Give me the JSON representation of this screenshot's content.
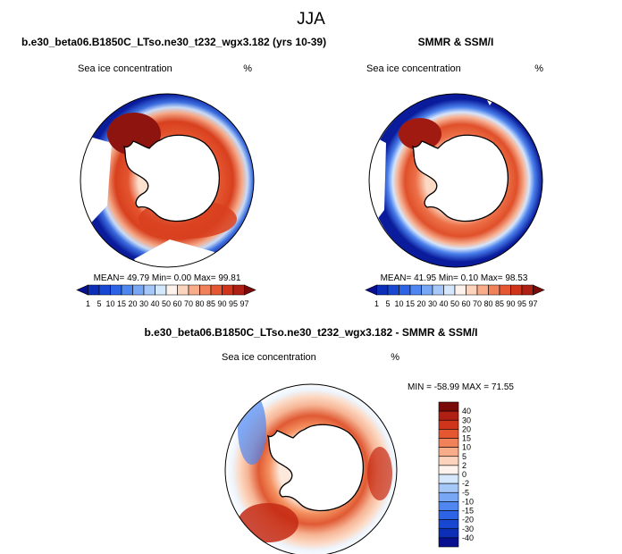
{
  "header": {
    "season": "JJA",
    "model_case": "b.e30_beta06.B1850C_LTso.ne30_t232_wgx3.182 (yrs 10-39)",
    "obs_name": "SMMR & SSM/I",
    "diff_title": "b.e30_beta06.B1850C_LTso.ne30_t232_wgx3.182 - SMMR & SSM/I"
  },
  "panels": {
    "model": {
      "label": "Sea ice concentration",
      "unit": "%",
      "stats": "MEAN=  49.79  Min=   0.00  Max=  99.81"
    },
    "obs": {
      "label": "Sea ice concentration",
      "unit": "%",
      "stats": "MEAN=  41.95  Min=   0.10  Max=  98.53"
    },
    "diff": {
      "label": "Sea ice concentration",
      "unit": "%",
      "stats": "MIN = -58.99 MAX =  71.55"
    }
  },
  "chart_data": [
    {
      "type": "heatmap",
      "title": "b.e30_beta06.B1850C_LTso.ne30_t232_wgx3.182 (yrs 10-39)",
      "variable": "Sea ice concentration",
      "unit": "%",
      "projection": "south polar stereographic",
      "mean": 49.79,
      "min": 0.0,
      "max": 99.81,
      "colorbar_levels": [
        1,
        5,
        10,
        15,
        20,
        30,
        40,
        50,
        60,
        70,
        80,
        85,
        90,
        95,
        97
      ],
      "colorbar_colors": [
        "#08108f",
        "#0b2fb6",
        "#1848d2",
        "#2d64e6",
        "#4f86ef",
        "#78a8f5",
        "#a6c8f9",
        "#d5e7fc",
        "#fdf3ec",
        "#fcd4bd",
        "#f8ac8a",
        "#f08159",
        "#e55730",
        "#d0341a",
        "#b01f13",
        "#7a0a0a"
      ]
    },
    {
      "type": "heatmap",
      "title": "SMMR & SSM/I",
      "variable": "Sea ice concentration",
      "unit": "%",
      "projection": "south polar stereographic",
      "mean": 41.95,
      "min": 0.1,
      "max": 98.53,
      "colorbar_levels": [
        1,
        5,
        10,
        15,
        20,
        30,
        40,
        50,
        60,
        70,
        80,
        85,
        90,
        95,
        97
      ],
      "colorbar_colors": [
        "#08108f",
        "#0b2fb6",
        "#1848d2",
        "#2d64e6",
        "#4f86ef",
        "#78a8f5",
        "#a6c8f9",
        "#d5e7fc",
        "#fdf3ec",
        "#fcd4bd",
        "#f8ac8a",
        "#f08159",
        "#e55730",
        "#d0341a",
        "#b01f13",
        "#7a0a0a"
      ]
    },
    {
      "type": "heatmap",
      "title": "b.e30_beta06.B1850C_LTso.ne30_t232_wgx3.182 - SMMR & SSM/I",
      "variable": "Sea ice concentration",
      "unit": "%",
      "projection": "south polar stereographic",
      "min": -58.99,
      "max": 71.55,
      "colorbar_levels": [
        40,
        30,
        20,
        15,
        10,
        5,
        2,
        0,
        -2,
        -5,
        -10,
        -15,
        -20,
        -30,
        -40
      ],
      "colorbar_colors": [
        "#7a0a0a",
        "#b01f13",
        "#d0341a",
        "#e55730",
        "#f08159",
        "#f8ac8a",
        "#fcd4bd",
        "#fdf3ec",
        "#d5e7fc",
        "#a6c8f9",
        "#78a8f5",
        "#4f86ef",
        "#2d64e6",
        "#1848d2",
        "#0b2fb6",
        "#08108f"
      ]
    }
  ]
}
